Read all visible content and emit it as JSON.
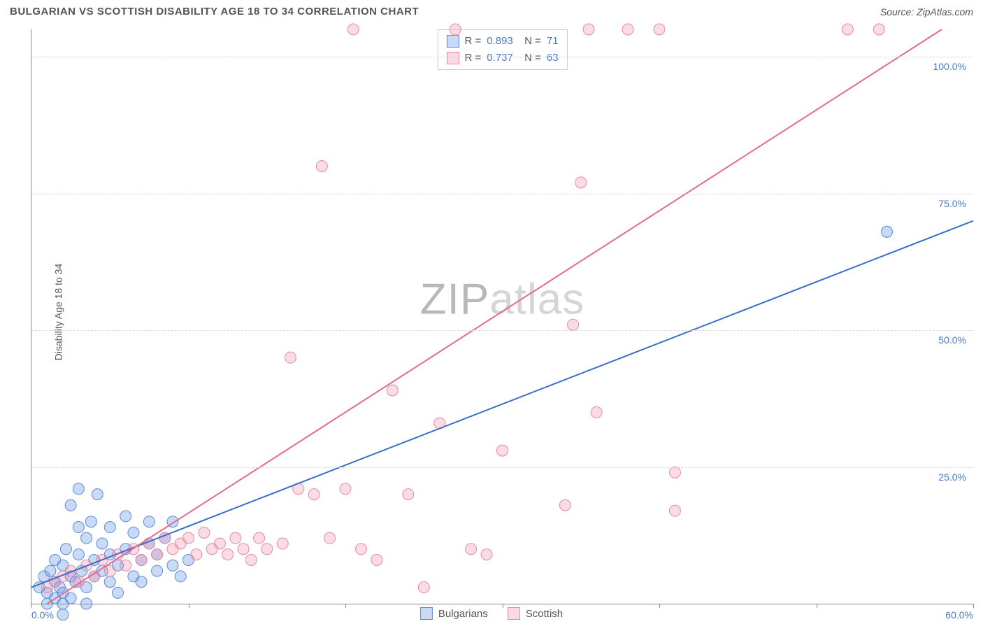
{
  "header": {
    "title": "BULGARIAN VS SCOTTISH DISABILITY AGE 18 TO 34 CORRELATION CHART",
    "source": "Source: ZipAtlas.com"
  },
  "chart": {
    "type": "scatter",
    "ylabel": "Disability Age 18 to 34",
    "watermark_zip": "ZIP",
    "watermark_atlas": "atlas",
    "xlim": [
      0,
      60
    ],
    "ylim": [
      0,
      105
    ],
    "ytick_labels": [
      "25.0%",
      "50.0%",
      "75.0%",
      "100.0%"
    ],
    "ytick_pos": [
      25,
      50,
      75,
      100
    ],
    "xtick_pos": [
      0,
      10,
      20,
      30,
      40,
      50,
      60
    ],
    "x_origin_label": "0.0%",
    "x_end_label": "60.0%",
    "grid_color": "#d8d8d8",
    "background_color": "#ffffff",
    "series": [
      {
        "name": "Bulgarians",
        "marker_fill": "rgba(100,150,230,0.35)",
        "marker_stroke": "#5a8cd6",
        "line_color": "#3b6fc9",
        "r": 0.893,
        "n": 71,
        "trend": {
          "x1": 0,
          "y1": 3,
          "x2": 60,
          "y2": 70
        },
        "points": [
          [
            0.5,
            3
          ],
          [
            0.8,
            5
          ],
          [
            1.0,
            2
          ],
          [
            1.2,
            6
          ],
          [
            1.5,
            4
          ],
          [
            1.5,
            8
          ],
          [
            1.8,
            3
          ],
          [
            2.0,
            7
          ],
          [
            2.0,
            2
          ],
          [
            2.2,
            10
          ],
          [
            2.5,
            5
          ],
          [
            2.5,
            18
          ],
          [
            2.8,
            4
          ],
          [
            3.0,
            9
          ],
          [
            3.0,
            14
          ],
          [
            3.0,
            21
          ],
          [
            3.2,
            6
          ],
          [
            3.5,
            12
          ],
          [
            3.5,
            3
          ],
          [
            3.8,
            15
          ],
          [
            4.0,
            5
          ],
          [
            4.0,
            8
          ],
          [
            4.2,
            20
          ],
          [
            4.5,
            6
          ],
          [
            4.5,
            11
          ],
          [
            5.0,
            4
          ],
          [
            5.0,
            9
          ],
          [
            5.0,
            14
          ],
          [
            5.5,
            7
          ],
          [
            5.5,
            2
          ],
          [
            6.0,
            10
          ],
          [
            6.0,
            16
          ],
          [
            6.5,
            5
          ],
          [
            6.5,
            13
          ],
          [
            7.0,
            8
          ],
          [
            7.0,
            4
          ],
          [
            7.5,
            11
          ],
          [
            7.5,
            15
          ],
          [
            8.0,
            6
          ],
          [
            8.0,
            9
          ],
          [
            8.5,
            12
          ],
          [
            9.0,
            7
          ],
          [
            9.0,
            15
          ],
          [
            9.5,
            5
          ],
          [
            10.0,
            8
          ],
          [
            1.0,
            0
          ],
          [
            1.5,
            1
          ],
          [
            2.0,
            0
          ],
          [
            2.5,
            1
          ],
          [
            3.5,
            0
          ],
          [
            2.0,
            -2
          ],
          [
            54.5,
            68
          ]
        ]
      },
      {
        "name": "Scottish",
        "marker_fill": "rgba(240,130,160,0.28)",
        "marker_stroke": "#e889a3",
        "line_color": "#e26b8f",
        "r": 0.737,
        "n": 63,
        "trend": {
          "x1": 1,
          "y1": 0,
          "x2": 58,
          "y2": 105
        },
        "points": [
          [
            1.0,
            3
          ],
          [
            1.5,
            4
          ],
          [
            2.0,
            5
          ],
          [
            2.5,
            6
          ],
          [
            3.0,
            4
          ],
          [
            3.5,
            7
          ],
          [
            4.0,
            5
          ],
          [
            4.5,
            8
          ],
          [
            5.0,
            6
          ],
          [
            5.5,
            9
          ],
          [
            6.0,
            7
          ],
          [
            6.5,
            10
          ],
          [
            7.0,
            8
          ],
          [
            7.5,
            11
          ],
          [
            8.0,
            9
          ],
          [
            8.5,
            12
          ],
          [
            9.0,
            10
          ],
          [
            9.5,
            11
          ],
          [
            10.0,
            12
          ],
          [
            10.5,
            9
          ],
          [
            11.0,
            13
          ],
          [
            11.5,
            10
          ],
          [
            12.0,
            11
          ],
          [
            12.5,
            9
          ],
          [
            13.0,
            12
          ],
          [
            13.5,
            10
          ],
          [
            14.0,
            8
          ],
          [
            14.5,
            12
          ],
          [
            15.0,
            10
          ],
          [
            16.0,
            11
          ],
          [
            16.5,
            45
          ],
          [
            17.0,
            21
          ],
          [
            18.0,
            20
          ],
          [
            18.5,
            80
          ],
          [
            19.0,
            12
          ],
          [
            20.0,
            21
          ],
          [
            20.5,
            105
          ],
          [
            21.0,
            10
          ],
          [
            22.0,
            8
          ],
          [
            23.0,
            39
          ],
          [
            24.0,
            20
          ],
          [
            25.0,
            3
          ],
          [
            26.0,
            33
          ],
          [
            27.0,
            105
          ],
          [
            28.0,
            10
          ],
          [
            29.0,
            9
          ],
          [
            30.0,
            28
          ],
          [
            34.0,
            18
          ],
          [
            34.5,
            51
          ],
          [
            35.0,
            77
          ],
          [
            35.5,
            105
          ],
          [
            36.0,
            35
          ],
          [
            38.0,
            105
          ],
          [
            40.0,
            105
          ],
          [
            41.0,
            17
          ],
          [
            41.0,
            24
          ],
          [
            52.0,
            105
          ],
          [
            54.0,
            105
          ]
        ]
      }
    ]
  },
  "bottom_legend": {
    "items": [
      {
        "label": "Bulgarians",
        "swatch": "blue"
      },
      {
        "label": "Scottish",
        "swatch": "pink"
      }
    ]
  }
}
